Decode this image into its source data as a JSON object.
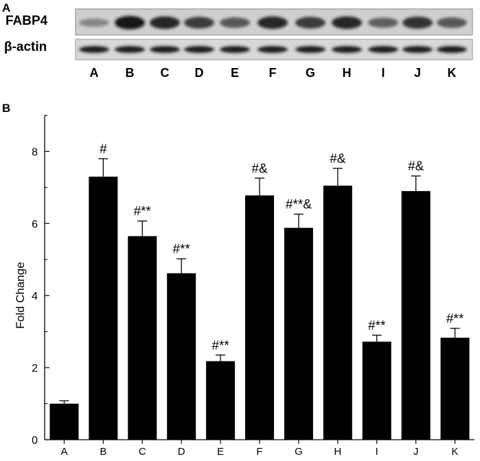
{
  "panel_a": {
    "letter": "A",
    "row_labels": [
      "FABP4",
      "β-actin"
    ],
    "lanes": [
      "A",
      "B",
      "C",
      "D",
      "E",
      "F",
      "G",
      "H",
      "I",
      "J",
      "K"
    ],
    "fabp4_intensity": [
      0.35,
      0.95,
      0.85,
      0.75,
      0.6,
      0.85,
      0.75,
      0.85,
      0.55,
      0.8,
      0.6
    ],
    "actin_intensity": [
      0.9,
      0.9,
      0.9,
      0.9,
      0.9,
      0.9,
      0.9,
      0.9,
      0.9,
      0.9,
      0.9
    ]
  },
  "panel_b": {
    "letter": "B"
  },
  "chart_data": {
    "type": "bar",
    "categories": [
      "A",
      "B",
      "C",
      "D",
      "E",
      "F",
      "G",
      "H",
      "I",
      "J",
      "K"
    ],
    "values": [
      1.0,
      7.3,
      5.65,
      4.62,
      2.18,
      6.78,
      5.88,
      7.05,
      2.72,
      6.9,
      2.83
    ],
    "errors": [
      0.08,
      0.5,
      0.42,
      0.4,
      0.17,
      0.48,
      0.38,
      0.48,
      0.18,
      0.42,
      0.26
    ],
    "annotations": [
      "",
      "#",
      "#**",
      "#**",
      "#**",
      "#&",
      "#**&",
      "#&",
      "#**",
      "#&",
      "#**"
    ],
    "ylabel": "Fold Change",
    "xlabel": "",
    "ylim": [
      0,
      9
    ],
    "yticks": [
      0,
      2,
      4,
      6,
      8
    ],
    "grid": false,
    "bar_color": "#000000"
  }
}
